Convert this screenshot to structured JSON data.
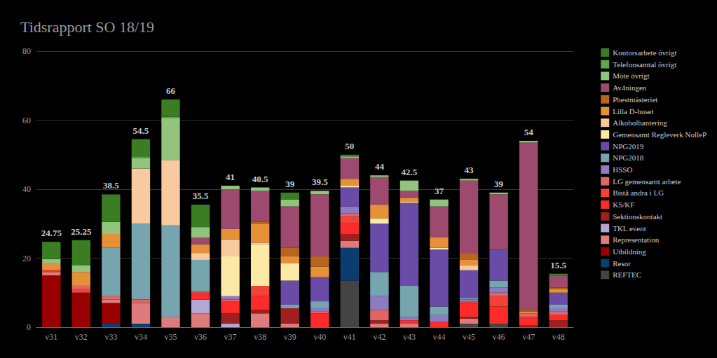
{
  "chart_data": {
    "type": "bar",
    "title": "Tidsrapport SO 18/19",
    "stacked": true,
    "grid": true,
    "legend": "right",
    "categories": [
      "v31",
      "v32",
      "v33",
      "v34",
      "v35",
      "v36",
      "v37",
      "v38",
      "v39",
      "v40",
      "v41",
      "v42",
      "v43",
      "v44",
      "v45",
      "v46",
      "v47",
      "v48"
    ],
    "ylim": [
      0,
      80
    ],
    "yticks": [
      0,
      20,
      40,
      60,
      80
    ],
    "totals": [
      24.75,
      25.25,
      38.5,
      54.5,
      66,
      35.5,
      41,
      40.5,
      39,
      39.5,
      50,
      44,
      42.5,
      37,
      43,
      39,
      54,
      15.5
    ],
    "series": [
      {
        "name": "Kontorsarbete övrigt",
        "color": "#3a7d22",
        "values": [
          5,
          7.25,
          8,
          5,
          5,
          6.5,
          0,
          0,
          2,
          0,
          0.5,
          0,
          0,
          0,
          0,
          0,
          0,
          0.5
        ]
      },
      {
        "name": "Telefonsamtal övrigt",
        "color": "#5fa84a",
        "values": [
          0,
          0,
          0,
          0.5,
          0.5,
          0,
          0,
          0,
          0,
          0,
          0,
          0,
          0,
          0,
          0,
          0,
          0,
          0
        ]
      },
      {
        "name": "Möte övrigt",
        "color": "#93c47d",
        "values": [
          1.25,
          2,
          3.5,
          3,
          12,
          3,
          1,
          1,
          2,
          1,
          0.5,
          0.5,
          3,
          2,
          0.5,
          0.5,
          0.5,
          0
        ]
      },
      {
        "name": "Av4ningen",
        "color": "#9e4a6e",
        "values": [
          0,
          0,
          0,
          0,
          0,
          2,
          11.5,
          9,
          12,
          18,
          6,
          8,
          2,
          9,
          21,
          16,
          48.5,
          3.5
        ]
      },
      {
        "name": "Phestmästeriet",
        "color": "#b8661e",
        "values": [
          0,
          0,
          0,
          0,
          0,
          0,
          0,
          0.5,
          2.5,
          3,
          0,
          0,
          0,
          0,
          2,
          0,
          0.5,
          0.5
        ]
      },
      {
        "name": "Lilla D-huset",
        "color": "#e69138",
        "values": [
          2,
          4,
          4,
          0,
          0,
          2.5,
          3,
          5.5,
          2,
          3,
          2,
          4,
          1,
          3,
          1.5,
          0,
          0.5,
          1
        ]
      },
      {
        "name": "Alkoholhantering",
        "color": "#f9c9a0",
        "values": [
          0,
          0,
          0,
          16,
          19,
          2,
          5,
          0.5,
          0,
          0,
          0,
          0,
          0.5,
          0,
          1.5,
          0,
          0,
          0
        ]
      },
      {
        "name": "Gemensamt Regleverk NolleP",
        "color": "#fde9a6",
        "values": [
          0,
          0,
          0,
          0,
          0,
          0,
          11.5,
          12,
          5,
          0,
          0.5,
          1.5,
          0,
          0.5,
          0,
          0,
          0,
          0
        ]
      },
      {
        "name": "NPG2019",
        "color": "#6a4ca8",
        "values": [
          0,
          0,
          0,
          0,
          0,
          0,
          0,
          0,
          7,
          7,
          5.5,
          14,
          24,
          16.5,
          8,
          9,
          0,
          3.5
        ]
      },
      {
        "name": "NPG2018",
        "color": "#76a5af",
        "values": [
          0,
          0,
          14,
          22,
          26.5,
          9,
          0,
          0,
          1,
          2,
          0,
          7,
          9,
          2.5,
          0.5,
          2,
          0,
          1
        ]
      },
      {
        "name": "HSSO",
        "color": "#8e7cc3",
        "values": [
          0,
          0,
          0,
          0,
          0,
          0,
          1,
          0,
          0,
          1,
          2,
          4,
          1,
          2,
          0.5,
          1.5,
          0,
          1
        ]
      },
      {
        "name": "LG gemensamt arbete",
        "color": "#e06666",
        "values": [
          0,
          1,
          1,
          1,
          0,
          0.5,
          0.5,
          0,
          0,
          0.5,
          1,
          3,
          0,
          0,
          0,
          1,
          1,
          1
        ]
      },
      {
        "name": "Bistå andra i LG",
        "color": "#f44336",
        "values": [
          0,
          1,
          0,
          0,
          0,
          0,
          0,
          3,
          0,
          0,
          2,
          0,
          0,
          0,
          0.5,
          3,
          0,
          0
        ]
      },
      {
        "name": "KS/KF",
        "color": "#ff2a2a",
        "values": [
          0.5,
          0,
          0,
          0,
          0,
          2,
          3.5,
          4,
          0,
          4,
          3,
          0,
          1,
          1.5,
          4,
          5,
          2.5,
          1.5
        ]
      },
      {
        "name": "Sektionskontakt",
        "color": "#a02020",
        "values": [
          0,
          0,
          0,
          0,
          0,
          0,
          3,
          1,
          4.5,
          0,
          2,
          1,
          0,
          0,
          0.5,
          0,
          0.5,
          2
        ]
      },
      {
        "name": "TKL event",
        "color": "#b4a7d6",
        "values": [
          0,
          0,
          0,
          0,
          0,
          4,
          1,
          0,
          0,
          0,
          0,
          0,
          0,
          0,
          0,
          0,
          0,
          0
        ]
      },
      {
        "name": "Representation",
        "color": "#e07b7b",
        "values": [
          1,
          0,
          1,
          6,
          3,
          4,
          0,
          4,
          1,
          0,
          2,
          1,
          1,
          0,
          1.5,
          0,
          0,
          0
        ]
      },
      {
        "name": "Utbildning",
        "color": "#990000",
        "values": [
          15,
          10,
          6,
          0,
          0,
          0,
          0,
          0,
          0,
          0,
          0,
          0,
          0,
          0,
          0,
          0,
          0,
          0
        ]
      },
      {
        "name": "Resor",
        "color": "#0b3d6e",
        "values": [
          0,
          0,
          1,
          1,
          0,
          0,
          0,
          0,
          0,
          0,
          9.5,
          0,
          0,
          0,
          0,
          0,
          0,
          0
        ]
      },
      {
        "name": "REFTEC",
        "color": "#444444",
        "values": [
          0,
          0,
          0,
          0,
          0,
          0,
          0,
          0,
          0,
          0,
          13.5,
          0,
          0,
          0,
          1,
          1,
          0,
          0
        ]
      }
    ]
  }
}
